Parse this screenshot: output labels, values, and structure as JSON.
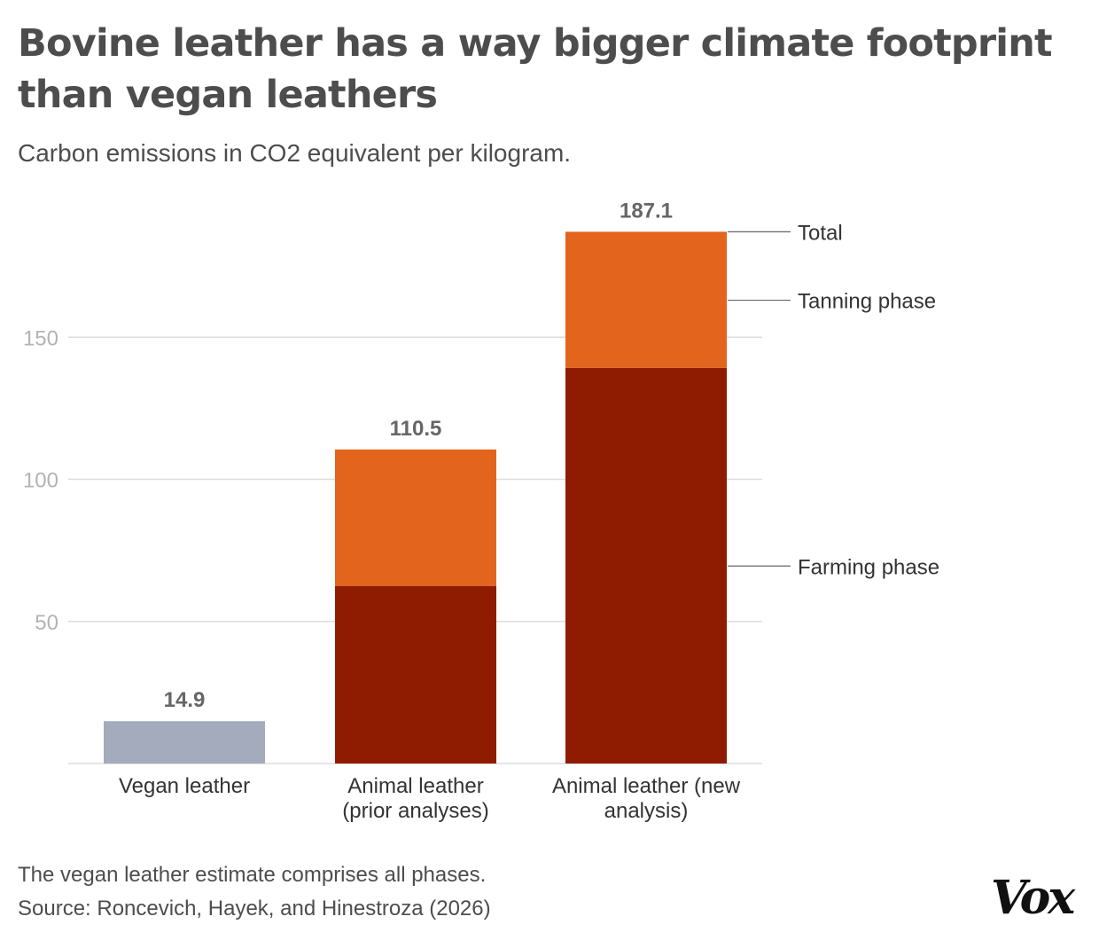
{
  "title": "Bovine leather has a way bigger climate footprint than vegan leathers",
  "subtitle": "Carbon emissions in CO2 equivalent per kilogram.",
  "note": "The vegan leather estimate comprises all phases.",
  "source": "Source: Roncevich, Hayek, and Hinestroza (2026)",
  "logo": "Vox",
  "chart_data": {
    "type": "bar",
    "stacked": true,
    "categories": [
      "Vegan leather",
      "Animal leather (prior analyses)",
      "Animal leather (new analysis)"
    ],
    "category_label_lines": [
      [
        "Vegan leather"
      ],
      [
        "Animal leather",
        "(prior analyses)"
      ],
      [
        "Animal leather (new",
        "analysis)"
      ]
    ],
    "totals": [
      14.9,
      110.5,
      187.1
    ],
    "total_labels": [
      "14.9",
      "110.5",
      "187.1"
    ],
    "series": [
      {
        "name": "Vegan leather (all phases)",
        "values": [
          14.9,
          null,
          null
        ],
        "color": "#a3abbd"
      },
      {
        "name": "Farming phase",
        "values": [
          null,
          62.5,
          139.2
        ],
        "color": "#8f1c00"
      },
      {
        "name": "Tanning phase",
        "values": [
          null,
          48.0,
          47.9
        ],
        "color": "#e3641d"
      }
    ],
    "annotations": [
      {
        "text": "Total",
        "value": 187.1
      },
      {
        "text": "Tanning phase",
        "value": 163.0
      },
      {
        "text": "Farming phase",
        "value": 69.5
      }
    ],
    "yticks": [
      50,
      100,
      150
    ],
    "ylim": [
      0,
      187.1
    ],
    "grid": true,
    "xlabel": "",
    "ylabel": ""
  }
}
